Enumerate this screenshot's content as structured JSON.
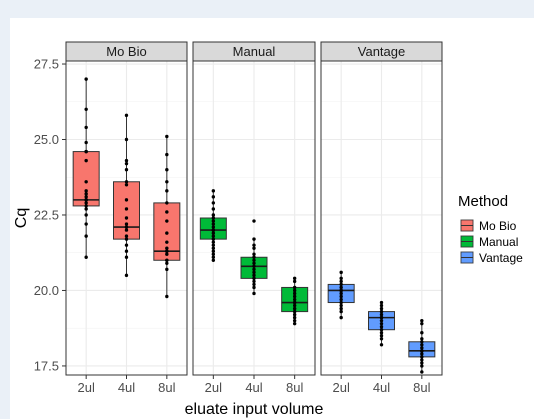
{
  "chart_data": {
    "type": "box",
    "xlabel": "eluate input volume",
    "ylabel": "Cq",
    "ylim": [
      17.2,
      27.6
    ],
    "y_ticks": [
      17.5,
      20.0,
      22.5,
      25.0,
      27.5
    ],
    "y_tick_labels": [
      "17.5",
      "20.0",
      "22.5",
      "25.0",
      "27.5"
    ],
    "categories": [
      "2ul",
      "4ul",
      "8ul"
    ],
    "grid": true,
    "legend": {
      "title": "Method",
      "position": "right",
      "entries": [
        {
          "label": "Mo Bio",
          "color": "#f8766d"
        },
        {
          "label": "Manual",
          "color": "#00ba38"
        },
        {
          "label": "Vantage",
          "color": "#619cff"
        }
      ]
    },
    "panels": [
      {
        "name": "Mo Bio",
        "color": "#f8766d",
        "boxes": [
          {
            "category": "2ul",
            "whisker_low": 21.1,
            "q1": 22.8,
            "median": 23.0,
            "q3": 24.6,
            "whisker_high": 27.0,
            "points": [
              21.1,
              21.8,
              22.2,
              22.5,
              22.7,
              22.8,
              22.9,
              23.0,
              23.0,
              23.1,
              23.2,
              23.3,
              23.6,
              24.3,
              24.6,
              24.6,
              24.9,
              25.4,
              26.0,
              27.0
            ]
          },
          {
            "category": "4ul",
            "whisker_low": 20.5,
            "q1": 21.7,
            "median": 22.1,
            "q3": 23.6,
            "whisker_high": 25.8,
            "points": [
              20.5,
              21.1,
              21.3,
              21.5,
              21.7,
              21.8,
              22.0,
              22.1,
              22.1,
              22.2,
              22.4,
              22.7,
              23.0,
              23.5,
              23.6,
              24.0,
              24.2,
              24.3,
              25.0,
              25.8
            ]
          },
          {
            "category": "8ul",
            "whisker_low": 19.8,
            "q1": 21.0,
            "median": 21.3,
            "q3": 22.9,
            "whisker_high": 25.1,
            "points": [
              19.8,
              20.7,
              20.9,
              21.0,
              21.0,
              21.2,
              21.3,
              21.3,
              21.4,
              21.6,
              21.9,
              22.3,
              22.6,
              22.9,
              23.3,
              23.6,
              24.0,
              24.5,
              25.1
            ]
          }
        ]
      },
      {
        "name": "Manual",
        "color": "#00ba38",
        "boxes": [
          {
            "category": "2ul",
            "whisker_low": 21.0,
            "q1": 21.7,
            "median": 22.0,
            "q3": 22.4,
            "whisker_high": 23.3,
            "points": [
              21.0,
              21.1,
              21.2,
              21.3,
              21.4,
              21.5,
              21.6,
              21.7,
              21.8,
              21.9,
              22.0,
              22.0,
              22.1,
              22.2,
              22.3,
              22.4,
              22.5,
              22.7,
              22.9,
              23.1,
              23.3
            ]
          },
          {
            "category": "4ul",
            "whisker_low": 19.9,
            "q1": 20.4,
            "median": 20.8,
            "q3": 21.1,
            "whisker_high": 21.7,
            "points": [
              19.9,
              20.1,
              20.2,
              20.3,
              20.4,
              20.5,
              20.6,
              20.7,
              20.8,
              20.9,
              21.0,
              21.1,
              21.2,
              21.4,
              21.5,
              21.7,
              22.3
            ]
          },
          {
            "category": "8ul",
            "whisker_low": 18.9,
            "q1": 19.3,
            "median": 19.6,
            "q3": 20.1,
            "whisker_high": 20.4,
            "points": [
              18.9,
              19.0,
              19.1,
              19.2,
              19.3,
              19.4,
              19.5,
              19.6,
              19.6,
              19.7,
              19.8,
              19.9,
              20.0,
              20.1,
              20.3,
              20.4
            ]
          }
        ]
      },
      {
        "name": "Vantage",
        "color": "#619cff",
        "boxes": [
          {
            "category": "2ul",
            "whisker_low": 19.1,
            "q1": 19.6,
            "median": 20.0,
            "q3": 20.2,
            "whisker_high": 20.6,
            "points": [
              19.1,
              19.3,
              19.4,
              19.5,
              19.6,
              19.7,
              19.8,
              19.9,
              20.0,
              20.0,
              20.1,
              20.2,
              20.3,
              20.4,
              20.6
            ]
          },
          {
            "category": "4ul",
            "whisker_low": 18.2,
            "q1": 18.7,
            "median": 19.1,
            "q3": 19.3,
            "whisker_high": 19.6,
            "points": [
              18.2,
              18.4,
              18.5,
              18.6,
              18.7,
              18.8,
              18.9,
              19.0,
              19.1,
              19.1,
              19.2,
              19.3,
              19.4,
              19.5,
              19.6
            ]
          },
          {
            "category": "8ul",
            "whisker_low": 17.3,
            "q1": 17.8,
            "median": 18.0,
            "q3": 18.3,
            "whisker_high": 19.0,
            "points": [
              17.3,
              17.5,
              17.6,
              17.7,
              17.8,
              17.9,
              18.0,
              18.0,
              18.1,
              18.2,
              18.3,
              18.4,
              18.6,
              18.9,
              19.0
            ]
          }
        ]
      }
    ]
  }
}
